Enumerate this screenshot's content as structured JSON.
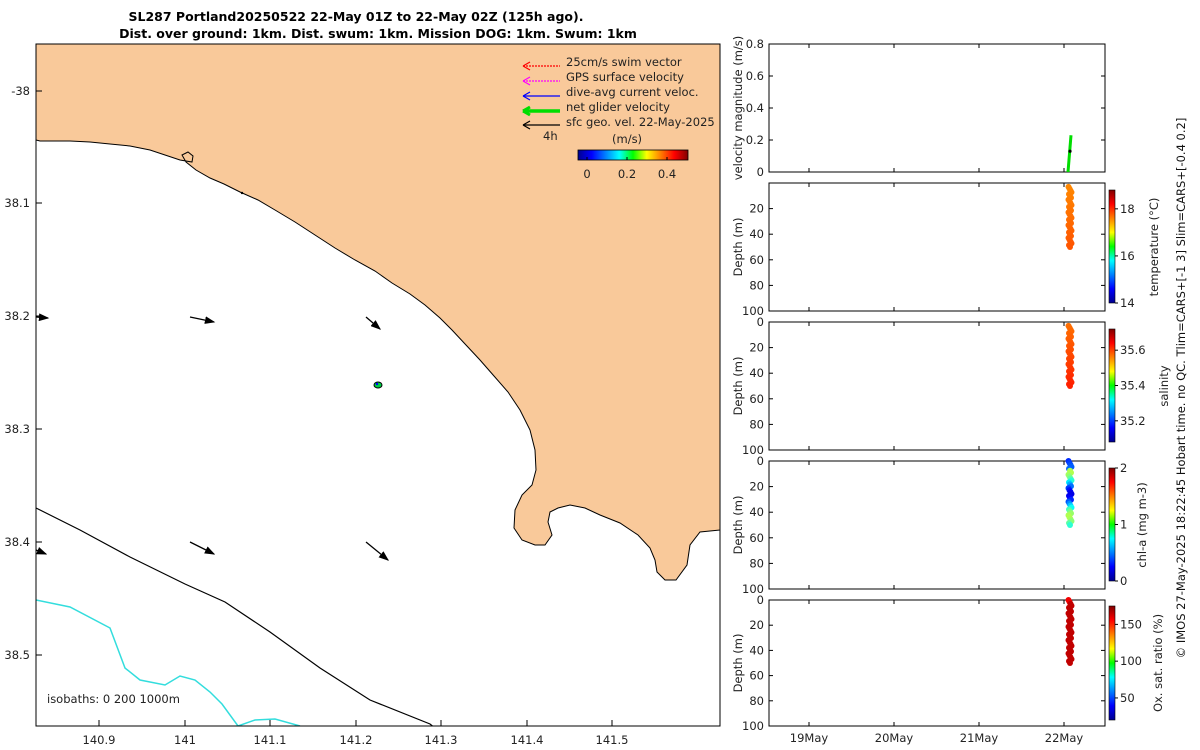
{
  "header": {
    "line1": "SL287 Portland20250522 22-May 01Z to 22-May 02Z (125h ago).",
    "line2": "Dist. over ground: 1km. Dist. swum: 1km. Mission DOG: 1km. Swum: 1km"
  },
  "map": {
    "lon_ticks": [
      "140.9",
      "141",
      "141.1",
      "141.2",
      "141.3",
      "141.4",
      "141.5"
    ],
    "lat_ticks": [
      "-38",
      "38.1",
      "38.2",
      "38.3",
      "38.4",
      "38.5"
    ],
    "legend": [
      {
        "label": "25cm/s swim vector",
        "color": "#ff0000"
      },
      {
        "label": "GPS surface velocity",
        "color": "#ff00ff"
      },
      {
        "label": "dive-avg current veloc.",
        "color": "#0000ff"
      },
      {
        "label": "net glider velocity",
        "color": "#00dd00"
      },
      {
        "label": "sfc geo. vel. 22-May-2025",
        "color": "#000000"
      }
    ],
    "legend_4h": "4h",
    "colorbar_title": "(m/s)",
    "colorbar_ticks": [
      "0",
      "0.2",
      "0.4"
    ],
    "isobaths_label": "isobaths: 0   200  1000m",
    "land_color": "#f9c99a",
    "isobath_200_color": "#000000",
    "isobath_1000_color": "#33dddd"
  },
  "panels": [
    {
      "ylabel": "velocity magnitude (m/s)",
      "yticks": [
        "0",
        "0.2",
        "0.4",
        "0.6",
        "0.8"
      ]
    },
    {
      "ylabel": "Depth (m)",
      "yticks": [
        "20",
        "40",
        "60",
        "80",
        "100"
      ],
      "cb_label": "temperature (°C)",
      "cb_ticks": [
        "14",
        "16",
        "18"
      ]
    },
    {
      "ylabel": "Depth (m)",
      "yticks": [
        "0",
        "20",
        "40",
        "60",
        "80",
        "100"
      ],
      "cb_label": "salinity",
      "cb_ticks": [
        "35.2",
        "35.4",
        "35.6"
      ]
    },
    {
      "ylabel": "Depth (m)",
      "yticks": [
        "0",
        "20",
        "40",
        "60",
        "80",
        "100"
      ],
      "cb_label": "chl-a (mg m-3)",
      "cb_ticks": [
        "0",
        "1",
        "2"
      ]
    },
    {
      "ylabel": "Depth (m)",
      "yticks": [
        "0",
        "20",
        "40",
        "60",
        "80",
        "100"
      ],
      "cb_label": "Ox. sat. ratio (%)",
      "cb_ticks": [
        "50",
        "100",
        "150"
      ]
    }
  ],
  "time_ticks": [
    "19May",
    "20May",
    "21May",
    "22May"
  ],
  "credit": "© IMOS 27-May-2025 18:22:45 Hobart time. no QC. Tlim=CARS+[-1 3] Slim=CARS+[-0.4 0.2]",
  "chart_data": [
    {
      "type": "scatter",
      "title": "velocity magnitude",
      "ylabel": "velocity magnitude (m/s)",
      "ylim": [
        0,
        0.8
      ],
      "x": [
        "22May",
        "22May"
      ],
      "series": [
        {
          "name": "net glider velocity",
          "values": [
            0.0,
            0.23
          ],
          "color": "#00dd00"
        },
        {
          "name": "dive-avg current veloc.",
          "values": [
            0.13
          ],
          "color": "#000000"
        }
      ]
    },
    {
      "type": "scatter",
      "ylabel": "Depth (m)",
      "ylim": [
        0,
        100
      ],
      "depth_range": [
        3,
        50
      ],
      "variable": "temperature (°C)",
      "clim": [
        14,
        18.8
      ],
      "value_approx": 17.8
    },
    {
      "type": "scatter",
      "ylabel": "Depth (m)",
      "ylim": [
        0,
        100
      ],
      "depth_range": [
        3,
        50
      ],
      "variable": "salinity",
      "clim": [
        35.08,
        35.72
      ],
      "value_approx": [
        35.57,
        35.62
      ]
    },
    {
      "type": "scatter",
      "ylabel": "Depth (m)",
      "ylim": [
        0,
        100
      ],
      "depth_range": [
        0,
        50
      ],
      "variable": "chl-a (mg m-3)",
      "clim": [
        0,
        2
      ],
      "value_approx": [
        0.2,
        1.1
      ]
    },
    {
      "type": "scatter",
      "ylabel": "Depth (m)",
      "ylim": [
        0,
        100
      ],
      "depth_range": [
        0,
        50
      ],
      "variable": "Ox. sat. ratio (%)",
      "clim": [
        20,
        175
      ],
      "value_approx": 165
    }
  ]
}
